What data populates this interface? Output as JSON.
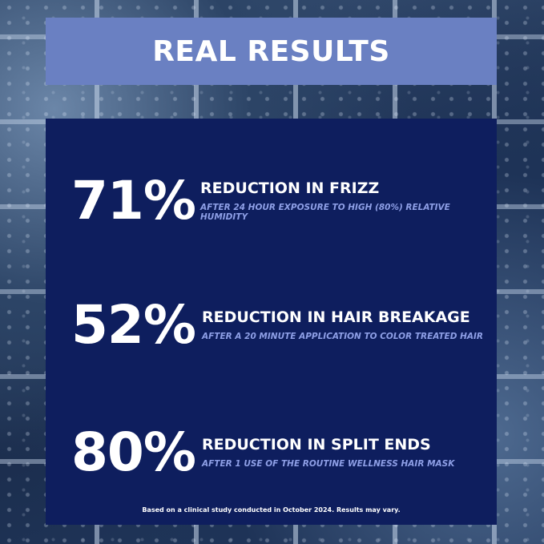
{
  "header": {
    "title": "REAL RESULTS"
  },
  "stats": [
    {
      "value": "71%",
      "title": "REDUCTION IN FRIZZ",
      "subtitle": "AFTER 24 HOUR EXPOSURE TO HIGH (80%) RELATIVE HUMIDITY"
    },
    {
      "value": "52%",
      "title": "REDUCTION IN HAIR BREAKAGE",
      "subtitle": "AFTER A 20 MINUTE APPLICATION TO COLOR TREATED HAIR"
    },
    {
      "value": "80%",
      "title": "REDUCTION IN SPLIT ENDS",
      "subtitle": "AFTER 1 USE OF THE ROUTINE WELLNESS HAIR MASK"
    }
  ],
  "footnote": "Based on a clinical study conducted in October 2024. Results may vary.",
  "colors": {
    "panel": "#0e1e5e",
    "header_band": "#6a80c2",
    "subtitle": "#8e9fe6"
  }
}
